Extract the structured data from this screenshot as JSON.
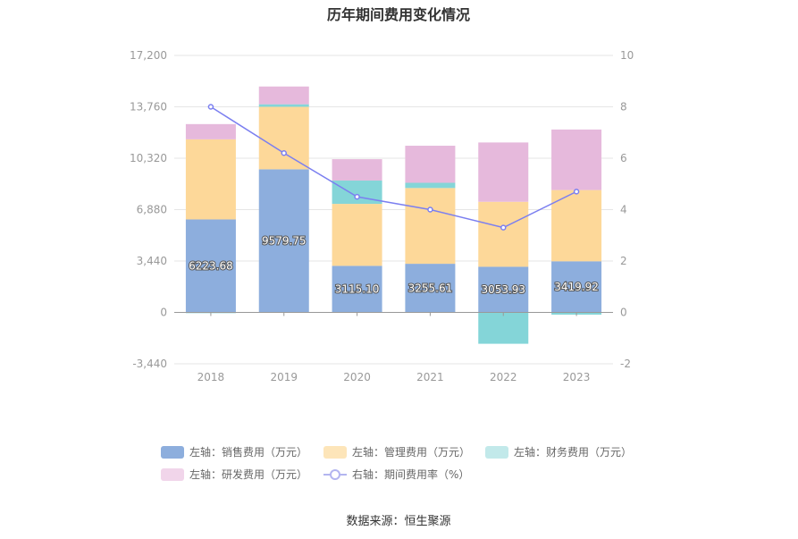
{
  "chart_data": {
    "type": "bar",
    "title": "历年期间费用变化情况",
    "source": "数据来源：恒生聚源",
    "categories": [
      "2018",
      "2019",
      "2020",
      "2021",
      "2022",
      "2023"
    ],
    "left_axis": {
      "ylim": [
        -3440,
        17200
      ],
      "ticks": [
        "17,200",
        "13,760",
        "10,320",
        "6,880",
        "3,440",
        "0",
        "-3,440"
      ],
      "tick_values": [
        17200,
        13760,
        10320,
        6880,
        3440,
        0,
        -3440
      ]
    },
    "right_axis": {
      "ylim": [
        -2,
        10
      ],
      "ticks": [
        "10",
        "8",
        "6",
        "4",
        "2",
        "0",
        "-2"
      ],
      "tick_values": [
        10,
        8,
        6,
        4,
        2,
        0,
        -2
      ]
    },
    "series": [
      {
        "name": "左轴：销售费用（万元）",
        "axis": "left",
        "color": "#8daedd",
        "values": [
          6223.68,
          9579.75,
          3115.1,
          3255.61,
          3053.93,
          3419.92
        ],
        "labels": [
          "6223.68",
          "9579.75",
          "3115.10",
          "3255.61",
          "3053.93",
          "3419.92"
        ]
      },
      {
        "name": "左轴：管理费用（万元）",
        "axis": "left",
        "color": "#fdd899",
        "values": [
          5360,
          4180,
          4150,
          5070,
          4350,
          4770
        ]
      },
      {
        "name": "左轴：财务费用（万元）",
        "axis": "left",
        "color": "#84d5d8",
        "values": [
          -50,
          170,
          1560,
          350,
          -2100,
          -150
        ]
      },
      {
        "name": "左轴：研发费用（万元）",
        "axis": "left",
        "color": "#e6b9dc",
        "values": [
          1020,
          1190,
          1430,
          2480,
          3970,
          4050
        ]
      },
      {
        "name": "右轴：期间费用率（%）",
        "axis": "right",
        "type": "line",
        "color": "#7b7ff0",
        "values": [
          8.0,
          6.2,
          4.5,
          4.0,
          3.3,
          4.7
        ]
      }
    ]
  }
}
